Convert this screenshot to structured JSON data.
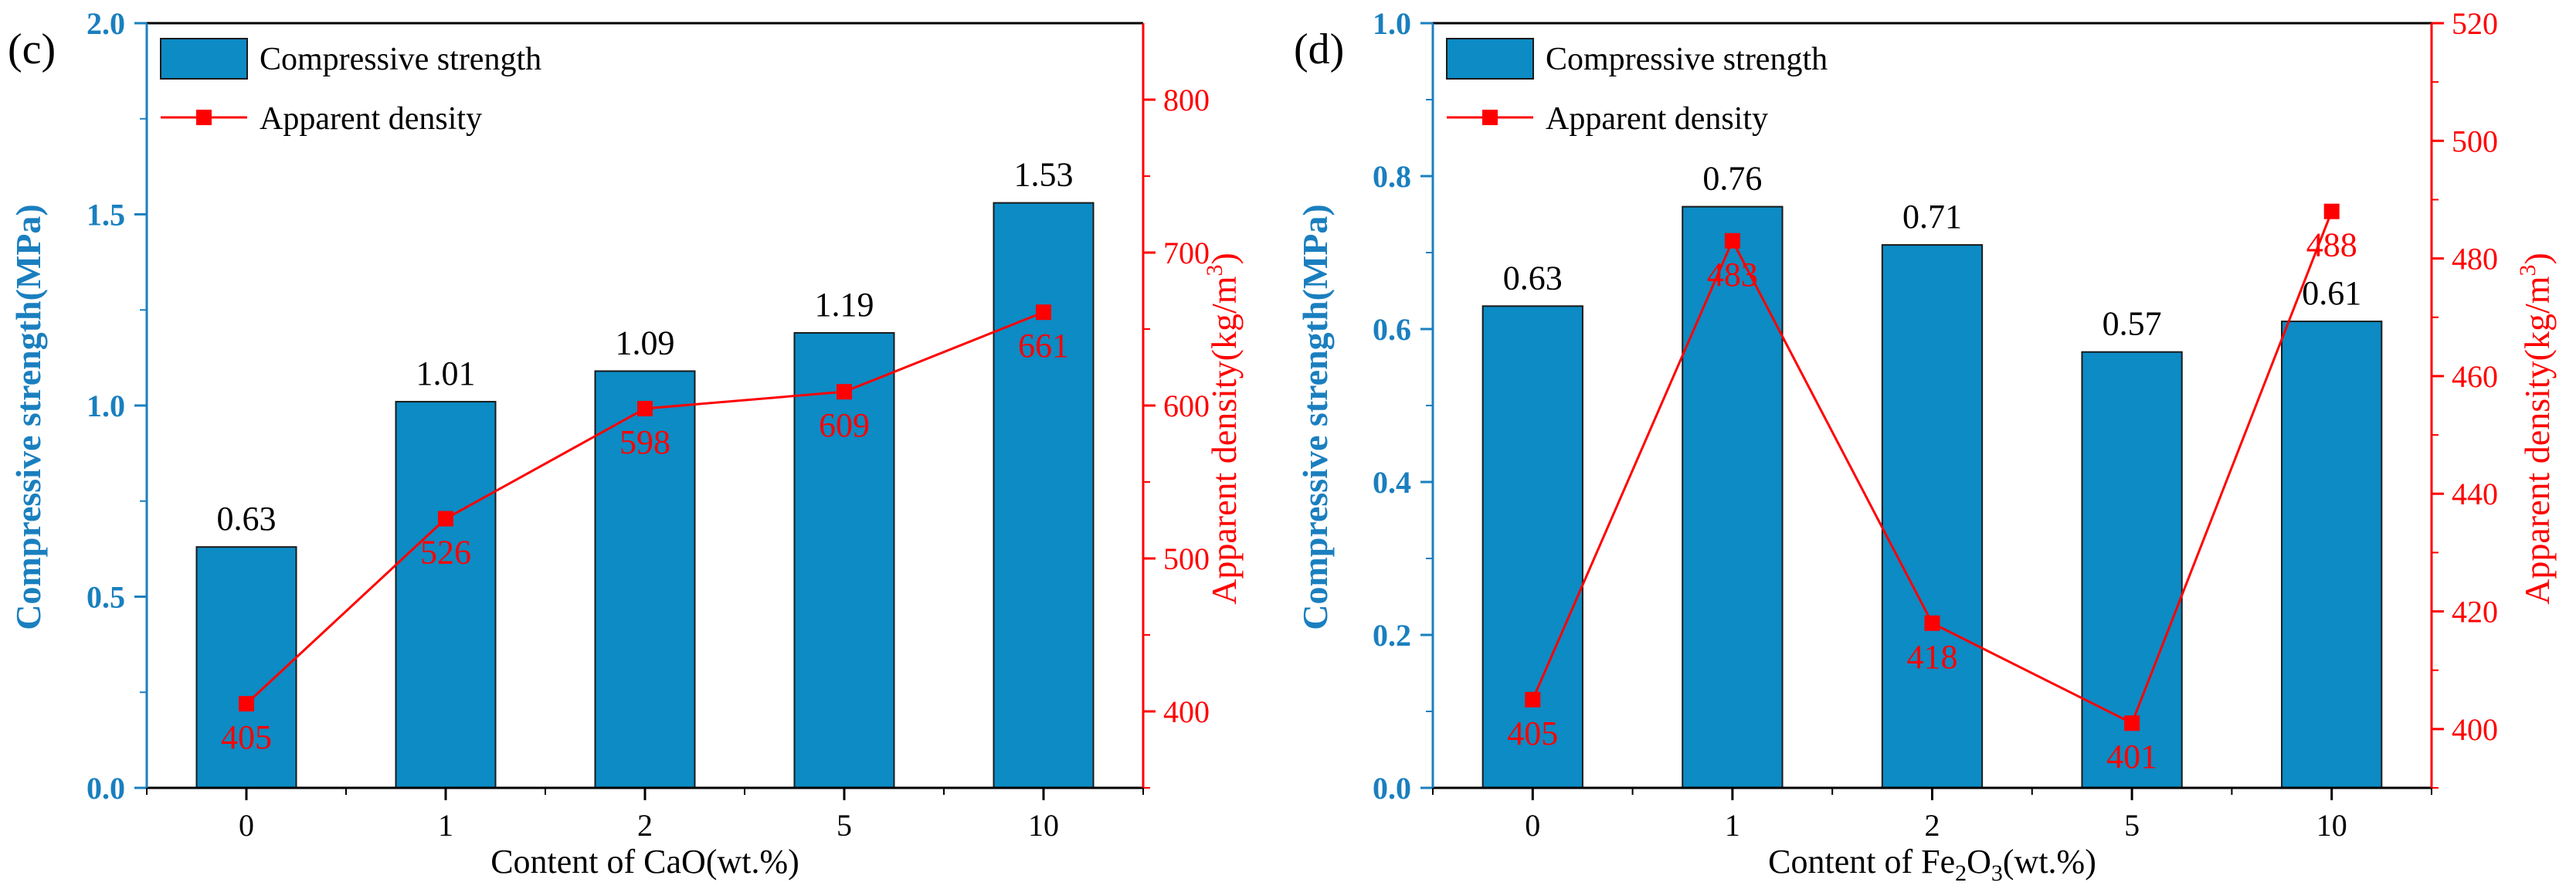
{
  "colors": {
    "bar": "#0c8bc4",
    "bar_stroke": "#1a1a1a",
    "line": "#ff0000",
    "left_axis": "#1a7fbf",
    "right_axis": "#ff0000",
    "frame": "#000000"
  },
  "legend": {
    "bar_label": "Compressive strength",
    "line_label": "Apparent density"
  },
  "chart_data": [
    {
      "type": "bar+line",
      "panel_label": "(c)",
      "categories": [
        "0",
        "1",
        "2",
        "5",
        "10"
      ],
      "xlabel": "Content of CaO(wt.%)",
      "ylabel": "Compressive strength(MPa)",
      "y2label": "Apparent density(kg/m",
      "y2label_sup": "3",
      "y2label_end": ")",
      "ylim": [
        0,
        2.0
      ],
      "yticks": [
        "0.0",
        "0.5",
        "1.0",
        "1.5",
        "2.0"
      ],
      "y2lim": [
        350,
        850
      ],
      "y2ticks": [
        "400",
        "500",
        "600",
        "700",
        "800"
      ],
      "series": [
        {
          "name": "Compressive strength",
          "kind": "bar",
          "values": [
            0.63,
            1.01,
            1.09,
            1.19,
            1.53
          ],
          "labels": [
            "0.63",
            "1.01",
            "1.09",
            "1.19",
            "1.53"
          ]
        },
        {
          "name": "Apparent density",
          "kind": "line",
          "values": [
            405,
            526,
            598,
            609,
            661
          ],
          "labels": [
            "405",
            "526",
            "598",
            "609",
            "661"
          ]
        }
      ]
    },
    {
      "type": "bar+line",
      "panel_label": "(d)",
      "categories": [
        "0",
        "1",
        "2",
        "5",
        "10"
      ],
      "xlabel": "Content of Fe",
      "xlabel_sub": "2",
      "xlabel_mid": "O",
      "xlabel_sub2": "3",
      "xlabel_end": "(wt.%)",
      "ylabel": "Compressive strength(MPa)",
      "y2label": "Apparent density(kg/m",
      "y2label_sup": "3",
      "y2label_end": ")",
      "ylim": [
        0,
        1.0
      ],
      "yticks": [
        "0.0",
        "0.2",
        "0.4",
        "0.6",
        "0.8",
        "1.0"
      ],
      "y2lim": [
        390,
        520
      ],
      "y2ticks": [
        "400",
        "420",
        "440",
        "460",
        "480",
        "500",
        "520"
      ],
      "series": [
        {
          "name": "Compressive strength",
          "kind": "bar",
          "values": [
            0.63,
            0.76,
            0.71,
            0.57,
            0.61
          ],
          "labels": [
            "0.63",
            "0.76",
            "0.71",
            "0.57",
            "0.61"
          ]
        },
        {
          "name": "Apparent density",
          "kind": "line",
          "values": [
            405,
            483,
            418,
            401,
            488
          ],
          "labels": [
            "405",
            "483",
            "418",
            "401",
            "488"
          ]
        }
      ]
    }
  ]
}
